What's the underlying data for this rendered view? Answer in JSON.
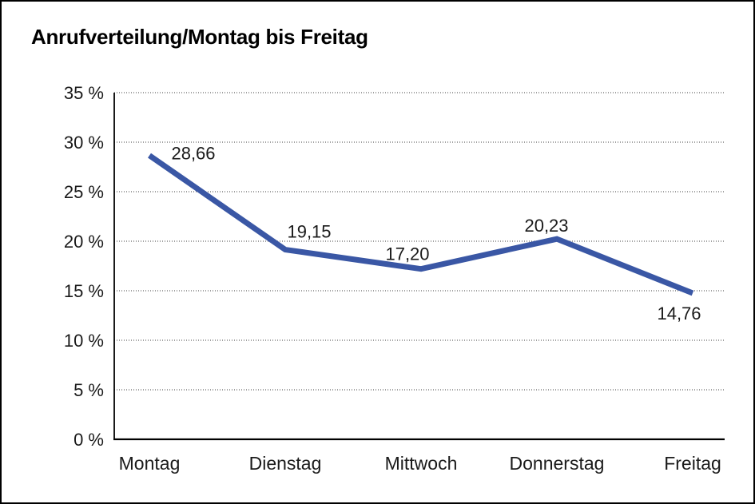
{
  "title": "Anrufverteilung/Montag bis Freitag",
  "colors": {
    "line": "#3A57A5",
    "grid": "#666666",
    "axis": "#000000",
    "text": "#1A1A1A",
    "background": "#FFFFFF",
    "frame_border": "#000000"
  },
  "chart_data": {
    "type": "line",
    "title": "Anrufverteilung/Montag bis Freitag",
    "categories": [
      "Montag",
      "Dienstag",
      "Mittwoch",
      "Donnerstag",
      "Freitag"
    ],
    "values": [
      28.66,
      19.15,
      17.2,
      20.23,
      14.76
    ],
    "value_labels": [
      "28,66",
      "19,15",
      "17,20",
      "20,23",
      "14,76"
    ],
    "xlabel": "",
    "ylabel": "",
    "ylim": [
      0,
      35
    ],
    "ytick_step": 5,
    "ytick_labels": [
      "0 %",
      "5 %",
      "10 %",
      "15 %",
      "20 %",
      "25 %",
      "30 %",
      "35 %"
    ],
    "grid": "horizontal dotted",
    "legend": "none"
  }
}
